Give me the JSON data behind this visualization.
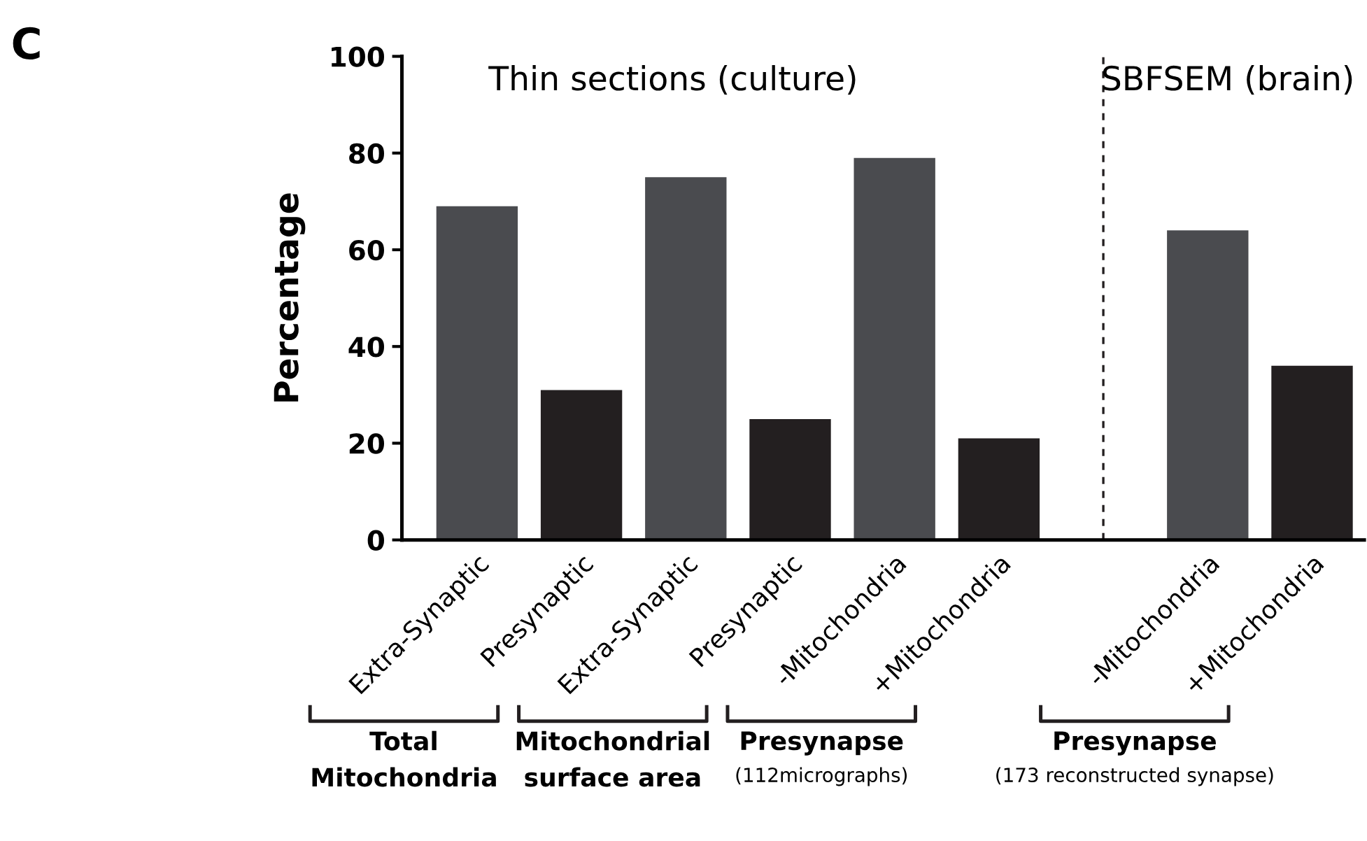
{
  "chart_data": {
    "type": "bar",
    "ylabel": "Percentage",
    "categories": [
      "Extra-Synaptic",
      "Presynaptic",
      "Extra-Synaptic",
      "Presynaptic",
      "-Mitochondria",
      "+Mitochondria",
      null,
      "-Mitochondria",
      "+Mitochondria"
    ],
    "values": [
      69,
      31,
      75,
      25,
      79,
      21,
      null,
      64,
      36
    ],
    "colors": [
      "#4a4b4f",
      "#231f20",
      "#4a4b4f",
      "#231f20",
      "#4a4b4f",
      "#231f20",
      null,
      "#4a4b4f",
      "#231f20"
    ],
    "ylim": [
      0,
      100
    ],
    "yticks": [
      0,
      20,
      40,
      60,
      80,
      100
    ],
    "legend": false,
    "ref_lines": [
      {
        "axis": "x",
        "value": null,
        "line_style": "dashed",
        "color": "#231f20"
      }
    ],
    "annotations": [
      "C",
      "Thin sections (culture)",
      "SBFSEM (brain)",
      "Total\nMitochondria",
      "Mitochondrial\nsurface area",
      "Presynapse\n(112micrographs)",
      "Presynapse\n(173 reconstructed synapse)"
    ]
  }
}
